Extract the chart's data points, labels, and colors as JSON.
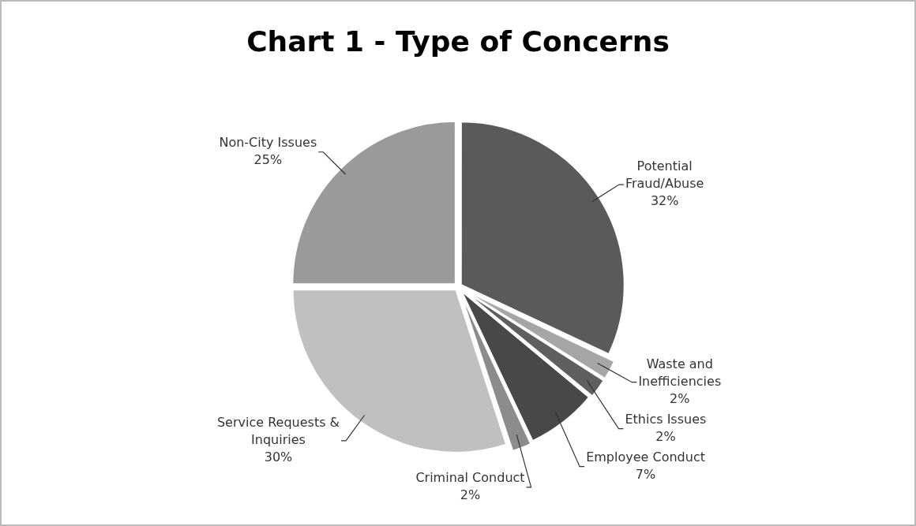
{
  "chart_data": {
    "type": "pie",
    "title": "Chart 1 - Type of Concerns",
    "categories": [
      "Potential Fraud/Abuse",
      "Waste and Inefficiencies",
      "Ethics Issues",
      "Employee Conduct",
      "Criminal Conduct",
      "Service Requests & Inquiries",
      "Non-City Issues"
    ],
    "values": [
      32,
      2,
      2,
      7,
      2,
      30,
      25
    ],
    "value_labels": [
      "32%",
      "2%",
      "2%",
      "7%",
      "2%",
      "30%",
      "25%"
    ],
    "colors": [
      "#5a5a5a",
      "#a6a6a6",
      "#5f5f5f",
      "#484848",
      "#8c8c8c",
      "#c0c0c0",
      "#9a9a9a"
    ],
    "legend": false
  }
}
